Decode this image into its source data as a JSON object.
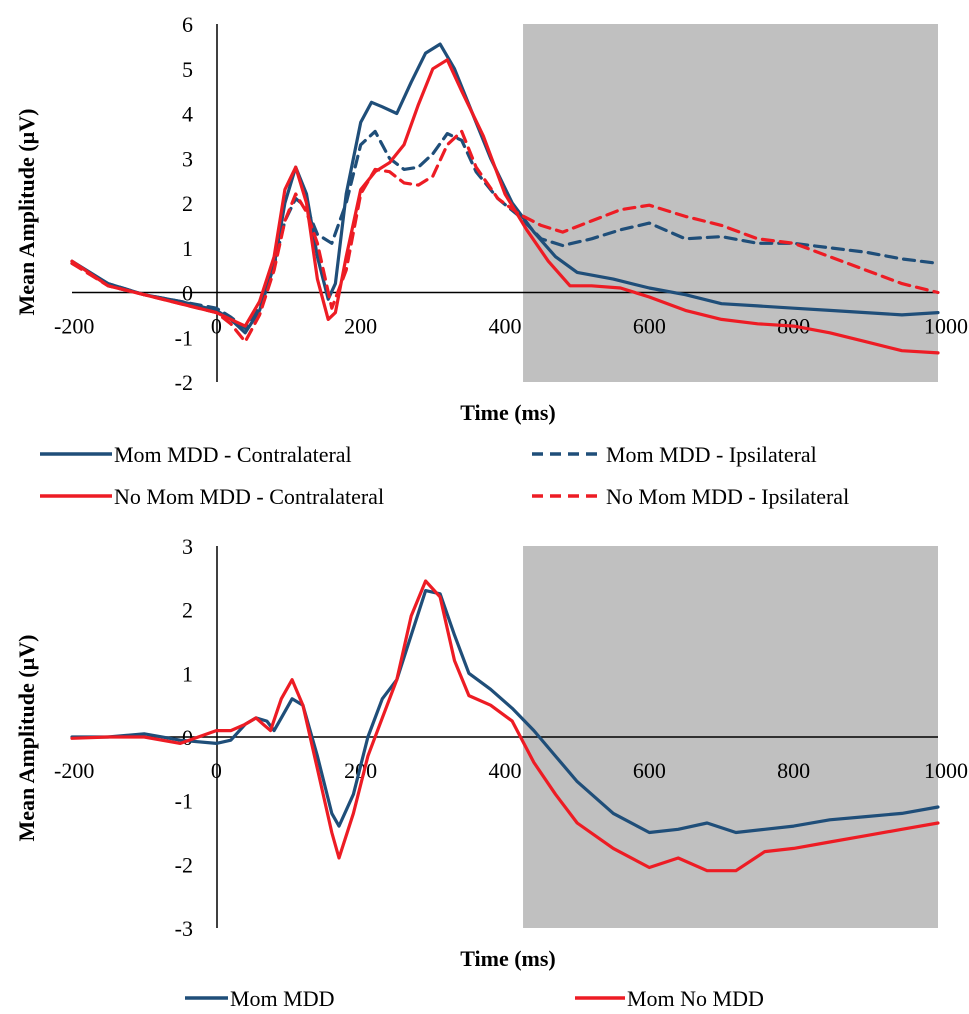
{
  "colors": {
    "blue": "#1f4e79",
    "red": "#ed1c24",
    "shade": "#c0c0c0"
  },
  "chart_data": [
    {
      "type": "line",
      "title": "",
      "xlabel": "Time (ms)",
      "ylabel": "Mean Amplitude (µV)",
      "xlim": [
        -200,
        1000
      ],
      "ylim": [
        -2,
        6
      ],
      "xticks": [
        -200,
        0,
        200,
        400,
        600,
        800,
        1000
      ],
      "yticks": [
        -2,
        -1,
        0,
        1,
        2,
        3,
        4,
        5,
        6
      ],
      "shaded_region": [
        425,
        1000
      ],
      "legend_position": "bottom",
      "series": [
        {
          "name": "Mom MDD - Contralateral",
          "color": "#1f4e79",
          "dashed": false,
          "x": [
            -200,
            -150,
            -100,
            -50,
            0,
            20,
            40,
            60,
            80,
            95,
            110,
            125,
            140,
            155,
            165,
            180,
            200,
            215,
            230,
            250,
            270,
            290,
            310,
            330,
            350,
            380,
            410,
            440,
            470,
            500,
            550,
            600,
            650,
            700,
            750,
            800,
            850,
            900,
            950,
            1000
          ],
          "y": [
            0.7,
            0.2,
            -0.05,
            -0.2,
            -0.4,
            -0.6,
            -0.9,
            -0.4,
            0.6,
            2.0,
            2.8,
            2.2,
            0.8,
            -0.15,
            0.2,
            2.2,
            3.8,
            4.25,
            4.15,
            4.0,
            4.7,
            5.35,
            5.55,
            5.0,
            4.2,
            3.0,
            2.0,
            1.35,
            0.8,
            0.45,
            0.3,
            0.1,
            -0.05,
            -0.25,
            -0.3,
            -0.35,
            -0.4,
            -0.45,
            -0.5,
            -0.45
          ]
        },
        {
          "name": "Mom MDD - Ipsilateral",
          "color": "#1f4e79",
          "dashed": true,
          "x": [
            -200,
            -150,
            -100,
            -50,
            0,
            20,
            40,
            60,
            80,
            95,
            110,
            125,
            140,
            160,
            180,
            200,
            220,
            240,
            260,
            280,
            300,
            320,
            340,
            360,
            390,
            420,
            450,
            480,
            520,
            560,
            600,
            650,
            700,
            750,
            800,
            850,
            900,
            950,
            1000
          ],
          "y": [
            0.65,
            0.2,
            -0.05,
            -0.2,
            -0.35,
            -0.55,
            -0.8,
            -0.3,
            0.6,
            1.6,
            2.1,
            1.9,
            1.3,
            1.1,
            2.0,
            3.3,
            3.6,
            3.0,
            2.75,
            2.8,
            3.1,
            3.55,
            3.4,
            2.7,
            2.1,
            1.7,
            1.2,
            1.05,
            1.2,
            1.4,
            1.55,
            1.2,
            1.25,
            1.1,
            1.1,
            1.0,
            0.9,
            0.75,
            0.65
          ]
        },
        {
          "name": "No Mom MDD - Contralateral",
          "color": "#ed1c24",
          "dashed": false,
          "x": [
            -200,
            -150,
            -100,
            -50,
            0,
            20,
            40,
            60,
            80,
            95,
            110,
            125,
            140,
            155,
            165,
            180,
            200,
            220,
            240,
            260,
            280,
            300,
            320,
            340,
            370,
            400,
            430,
            460,
            490,
            520,
            560,
            600,
            650,
            700,
            750,
            800,
            850,
            900,
            950,
            1000
          ],
          "y": [
            0.7,
            0.15,
            -0.05,
            -0.25,
            -0.45,
            -0.6,
            -0.75,
            -0.2,
            0.8,
            2.3,
            2.8,
            2.0,
            0.3,
            -0.6,
            -0.45,
            0.8,
            2.3,
            2.7,
            2.9,
            3.3,
            4.2,
            5.0,
            5.2,
            4.5,
            3.5,
            2.2,
            1.4,
            0.7,
            0.15,
            0.15,
            0.1,
            -0.1,
            -0.4,
            -0.6,
            -0.7,
            -0.75,
            -0.9,
            -1.1,
            -1.3,
            -1.35
          ]
        },
        {
          "name": "No Mom MDD - Ipsilateral",
          "color": "#ed1c24",
          "dashed": true,
          "x": [
            -200,
            -150,
            -100,
            -50,
            0,
            20,
            40,
            60,
            80,
            95,
            110,
            125,
            140,
            160,
            180,
            200,
            220,
            240,
            260,
            280,
            300,
            320,
            340,
            360,
            390,
            420,
            450,
            480,
            520,
            560,
            600,
            650,
            700,
            750,
            800,
            850,
            900,
            950,
            1000
          ],
          "y": [
            0.65,
            0.15,
            -0.05,
            -0.25,
            -0.45,
            -0.7,
            -1.1,
            -0.5,
            0.5,
            1.6,
            2.2,
            1.8,
            1.1,
            -0.35,
            0.5,
            2.2,
            2.75,
            2.7,
            2.45,
            2.4,
            2.6,
            3.3,
            3.6,
            2.8,
            2.1,
            1.75,
            1.5,
            1.35,
            1.6,
            1.85,
            1.95,
            1.7,
            1.5,
            1.2,
            1.1,
            0.8,
            0.5,
            0.2,
            0.0
          ]
        }
      ]
    },
    {
      "type": "line",
      "title": "",
      "xlabel": "Time (ms)",
      "ylabel": "Mean Amplitude (µV)",
      "xlim": [
        -200,
        1000
      ],
      "ylim": [
        -3,
        3
      ],
      "xticks": [
        -200,
        0,
        200,
        400,
        600,
        800,
        1000
      ],
      "yticks": [
        -3,
        -2,
        -1,
        0,
        1,
        2,
        3
      ],
      "shaded_region": [
        425,
        1000
      ],
      "legend_position": "bottom",
      "series": [
        {
          "name": "Mom MDD",
          "color": "#1f4e79",
          "dashed": false,
          "x": [
            -200,
            -150,
            -100,
            -50,
            0,
            20,
            40,
            55,
            70,
            80,
            90,
            105,
            120,
            140,
            160,
            170,
            190,
            210,
            230,
            250,
            270,
            290,
            310,
            330,
            350,
            380,
            410,
            440,
            470,
            500,
            550,
            600,
            640,
            680,
            720,
            760,
            800,
            850,
            900,
            950,
            1000
          ],
          "y": [
            0.0,
            0.0,
            0.05,
            -0.05,
            -0.1,
            -0.05,
            0.2,
            0.3,
            0.25,
            0.1,
            0.3,
            0.6,
            0.5,
            -0.3,
            -1.2,
            -1.4,
            -0.9,
            0.0,
            0.6,
            0.9,
            1.6,
            2.3,
            2.25,
            1.6,
            1.0,
            0.75,
            0.45,
            0.1,
            -0.3,
            -0.7,
            -1.2,
            -1.5,
            -1.45,
            -1.35,
            -1.5,
            -1.45,
            -1.4,
            -1.3,
            -1.25,
            -1.2,
            -1.1
          ]
        },
        {
          "name": "Mom No MDD",
          "color": "#ed1c24",
          "dashed": false,
          "x": [
            -200,
            -150,
            -100,
            -50,
            0,
            20,
            40,
            55,
            65,
            75,
            90,
            105,
            120,
            140,
            160,
            170,
            190,
            210,
            230,
            250,
            270,
            290,
            310,
            330,
            350,
            380,
            410,
            440,
            470,
            500,
            550,
            600,
            640,
            680,
            720,
            760,
            800,
            850,
            900,
            950,
            1000
          ],
          "y": [
            -0.02,
            0.0,
            0.0,
            -0.1,
            0.1,
            0.1,
            0.2,
            0.3,
            0.2,
            0.1,
            0.6,
            0.9,
            0.5,
            -0.5,
            -1.5,
            -1.9,
            -1.2,
            -0.3,
            0.3,
            0.9,
            1.9,
            2.45,
            2.2,
            1.2,
            0.65,
            0.5,
            0.25,
            -0.4,
            -0.9,
            -1.35,
            -1.75,
            -2.05,
            -1.9,
            -2.1,
            -2.1,
            -1.8,
            -1.75,
            -1.65,
            -1.55,
            -1.45,
            -1.35
          ]
        }
      ]
    }
  ]
}
